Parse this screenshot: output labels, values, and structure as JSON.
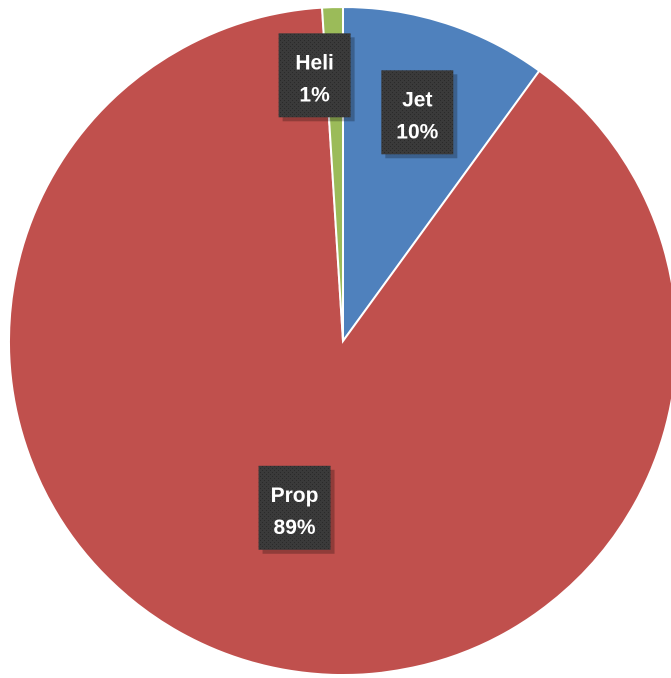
{
  "chart_data": {
    "type": "pie",
    "title": "",
    "slices": [
      {
        "label": "Jet",
        "value": 10,
        "percent_label": "10%",
        "color": "#4f81bd"
      },
      {
        "label": "Prop",
        "value": 89,
        "percent_label": "89%",
        "color": "#c0504d"
      },
      {
        "label": "Heli",
        "value": 1,
        "percent_label": "1%",
        "color": "#9bbb59"
      }
    ],
    "start_angle_deg": 0,
    "direction": "clockwise",
    "legend": "none",
    "label_style": {
      "background": "#333333",
      "text_color": "#ffffff"
    }
  }
}
